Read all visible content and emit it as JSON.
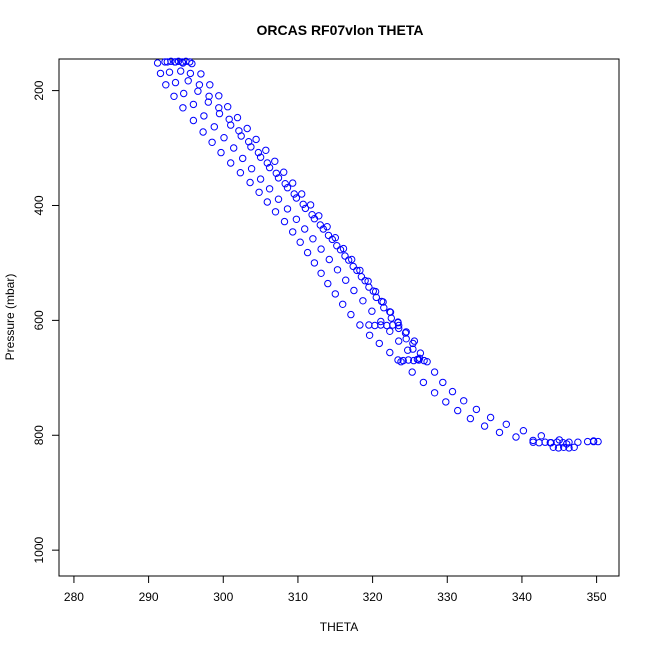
{
  "chart_data": {
    "type": "scatter",
    "title": "ORCAS RF07vlon THETA",
    "xlabel": "THETA",
    "ylabel": "Pressure (mbar)",
    "xlim": [
      278,
      353
    ],
    "ylim": [
      1045,
      145
    ],
    "y_reversed": true,
    "x_ticks": [
      280,
      290,
      300,
      310,
      320,
      330,
      340,
      350
    ],
    "y_ticks": [
      200,
      400,
      600,
      800,
      1000
    ],
    "grid": false,
    "legend": "none",
    "marker": "open-circle",
    "color": "#0000ff",
    "series": [
      {
        "points": [
          [
            291.2,
            152
          ],
          [
            291.6,
            170
          ],
          [
            292.3,
            190
          ],
          [
            293.4,
            210
          ],
          [
            294.6,
            230
          ],
          [
            296.0,
            252
          ],
          [
            297.3,
            272
          ],
          [
            298.5,
            290
          ],
          [
            299.7,
            308
          ],
          [
            301.0,
            326
          ],
          [
            302.3,
            343
          ],
          [
            303.6,
            360
          ],
          [
            304.8,
            377
          ],
          [
            305.9,
            394
          ],
          [
            307.0,
            411
          ],
          [
            308.2,
            428
          ],
          [
            309.3,
            446
          ],
          [
            310.3,
            464
          ],
          [
            311.3,
            482
          ],
          [
            312.2,
            500
          ],
          [
            313.1,
            518
          ],
          [
            314.0,
            536
          ],
          [
            315.0,
            554
          ],
          [
            316.0,
            572
          ],
          [
            317.1,
            590
          ],
          [
            318.3,
            608
          ],
          [
            319.6,
            626
          ],
          [
            320.9,
            640
          ],
          [
            322.3,
            656
          ],
          [
            323.8,
            672
          ],
          [
            325.3,
            690
          ],
          [
            326.8,
            708
          ],
          [
            328.3,
            726
          ],
          [
            329.8,
            742
          ],
          [
            331.4,
            757
          ],
          [
            333.1,
            771
          ],
          [
            335.0,
            784
          ],
          [
            337.0,
            795
          ],
          [
            339.2,
            803
          ],
          [
            341.5,
            809
          ],
          [
            343.8,
            813
          ],
          [
            346.0,
            815
          ]
        ]
      },
      {
        "points": [
          [
            292.2,
            150
          ],
          [
            292.8,
            168
          ],
          [
            293.6,
            186
          ],
          [
            294.7,
            205
          ],
          [
            296.0,
            224
          ],
          [
            297.4,
            244
          ],
          [
            298.8,
            263
          ],
          [
            300.1,
            282
          ],
          [
            301.4,
            300
          ],
          [
            302.6,
            318
          ],
          [
            303.8,
            336
          ],
          [
            305.0,
            354
          ],
          [
            306.2,
            371
          ],
          [
            307.4,
            389
          ],
          [
            308.6,
            406
          ],
          [
            309.8,
            424
          ],
          [
            310.9,
            441
          ],
          [
            312.0,
            458
          ],
          [
            313.1,
            476
          ],
          [
            314.2,
            494
          ],
          [
            315.3,
            512
          ],
          [
            316.4,
            530
          ],
          [
            317.5,
            548
          ],
          [
            318.7,
            566
          ],
          [
            319.9,
            584
          ],
          [
            321.1,
            602
          ],
          [
            322.3,
            619
          ],
          [
            323.5,
            636
          ],
          [
            324.7,
            652
          ],
          [
            326.0,
            668
          ]
        ]
      },
      {
        "points": [
          [
            293.6,
            150
          ],
          [
            294.3,
            166
          ],
          [
            295.3,
            183
          ],
          [
            296.6,
            201
          ],
          [
            298.0,
            220
          ],
          [
            299.5,
            240
          ],
          [
            301.0,
            260
          ],
          [
            302.4,
            279
          ],
          [
            303.7,
            298
          ],
          [
            305.0,
            316
          ],
          [
            306.2,
            334
          ],
          [
            307.4,
            352
          ],
          [
            308.6,
            369
          ],
          [
            309.8,
            387
          ],
          [
            311.0,
            405
          ],
          [
            312.2,
            423
          ],
          [
            313.4,
            441
          ],
          [
            314.6,
            459
          ],
          [
            315.7,
            477
          ],
          [
            316.8,
            495
          ],
          [
            317.9,
            513
          ],
          [
            319.0,
            531
          ],
          [
            320.1,
            549
          ],
          [
            321.2,
            567
          ],
          [
            322.3,
            585
          ],
          [
            323.4,
            603
          ],
          [
            324.5,
            620
          ],
          [
            325.6,
            636
          ]
        ]
      },
      {
        "points": [
          [
            294.6,
            152
          ],
          [
            295.6,
            170
          ],
          [
            296.8,
            190
          ],
          [
            298.1,
            210
          ],
          [
            299.4,
            230
          ],
          [
            300.8,
            250
          ],
          [
            302.1,
            270
          ],
          [
            303.4,
            289
          ],
          [
            304.7,
            308
          ],
          [
            305.9,
            326
          ],
          [
            307.1,
            344
          ],
          [
            308.3,
            362
          ],
          [
            309.5,
            380
          ],
          [
            310.7,
            398
          ],
          [
            311.9,
            416
          ],
          [
            313.0,
            434
          ],
          [
            314.1,
            452
          ],
          [
            315.2,
            470
          ],
          [
            316.3,
            488
          ],
          [
            317.4,
            506
          ],
          [
            318.5,
            524
          ],
          [
            319.5,
            542
          ],
          [
            320.5,
            560
          ],
          [
            321.5,
            578
          ],
          [
            322.5,
            596
          ],
          [
            323.5,
            614
          ],
          [
            324.5,
            632
          ],
          [
            325.4,
            650
          ],
          [
            326.3,
            666
          ]
        ]
      },
      {
        "points": [
          [
            295.8,
            153
          ],
          [
            297.0,
            171
          ],
          [
            298.2,
            190
          ],
          [
            299.4,
            209
          ],
          [
            300.6,
            228
          ],
          [
            301.9,
            247
          ],
          [
            303.2,
            266
          ],
          [
            304.4,
            285
          ],
          [
            305.7,
            304
          ],
          [
            306.9,
            323
          ],
          [
            308.1,
            342
          ],
          [
            309.3,
            361
          ],
          [
            310.5,
            380
          ],
          [
            311.7,
            399
          ],
          [
            312.8,
            418
          ],
          [
            313.9,
            437
          ],
          [
            315.0,
            456
          ],
          [
            316.1,
            475
          ],
          [
            317.2,
            494
          ],
          [
            318.3,
            513
          ],
          [
            319.4,
            532
          ],
          [
            320.4,
            550
          ],
          [
            321.4,
            568
          ],
          [
            322.4,
            586
          ],
          [
            323.4,
            604
          ],
          [
            324.4,
            622
          ],
          [
            325.4,
            640
          ],
          [
            326.4,
            657
          ],
          [
            327.3,
            672
          ],
          [
            328.3,
            690
          ],
          [
            329.4,
            708
          ],
          [
            330.7,
            724
          ],
          [
            332.2,
            740
          ],
          [
            333.9,
            755
          ],
          [
            335.8,
            769
          ],
          [
            337.9,
            781
          ],
          [
            340.2,
            792
          ],
          [
            342.6,
            801
          ],
          [
            345.0,
            808
          ],
          [
            347.5,
            812
          ],
          [
            349.6,
            811
          ]
        ]
      },
      {
        "points": [
          [
            292.5,
            150
          ],
          [
            293.0,
            149
          ],
          [
            293.5,
            150
          ],
          [
            294.0,
            149
          ],
          [
            294.5,
            150
          ],
          [
            295.0,
            149
          ],
          [
            295.5,
            150
          ],
          [
            319.5,
            608
          ],
          [
            320.3,
            609
          ],
          [
            321.1,
            608
          ],
          [
            321.9,
            609
          ],
          [
            322.7,
            608
          ],
          [
            323.5,
            609
          ],
          [
            323.4,
            669
          ],
          [
            324.1,
            670
          ],
          [
            324.8,
            669
          ],
          [
            325.5,
            670
          ],
          [
            326.2,
            669
          ],
          [
            326.9,
            670
          ],
          [
            341.5,
            812
          ],
          [
            342.3,
            813
          ],
          [
            343.1,
            812
          ],
          [
            343.9,
            813
          ],
          [
            344.7,
            812
          ],
          [
            345.5,
            813
          ],
          [
            346.3,
            812
          ],
          [
            344.2,
            821
          ],
          [
            344.9,
            822
          ],
          [
            345.6,
            821
          ],
          [
            346.3,
            822
          ],
          [
            347.0,
            821
          ],
          [
            348.8,
            811
          ],
          [
            349.6,
            810
          ],
          [
            350.2,
            811
          ]
        ]
      }
    ]
  }
}
